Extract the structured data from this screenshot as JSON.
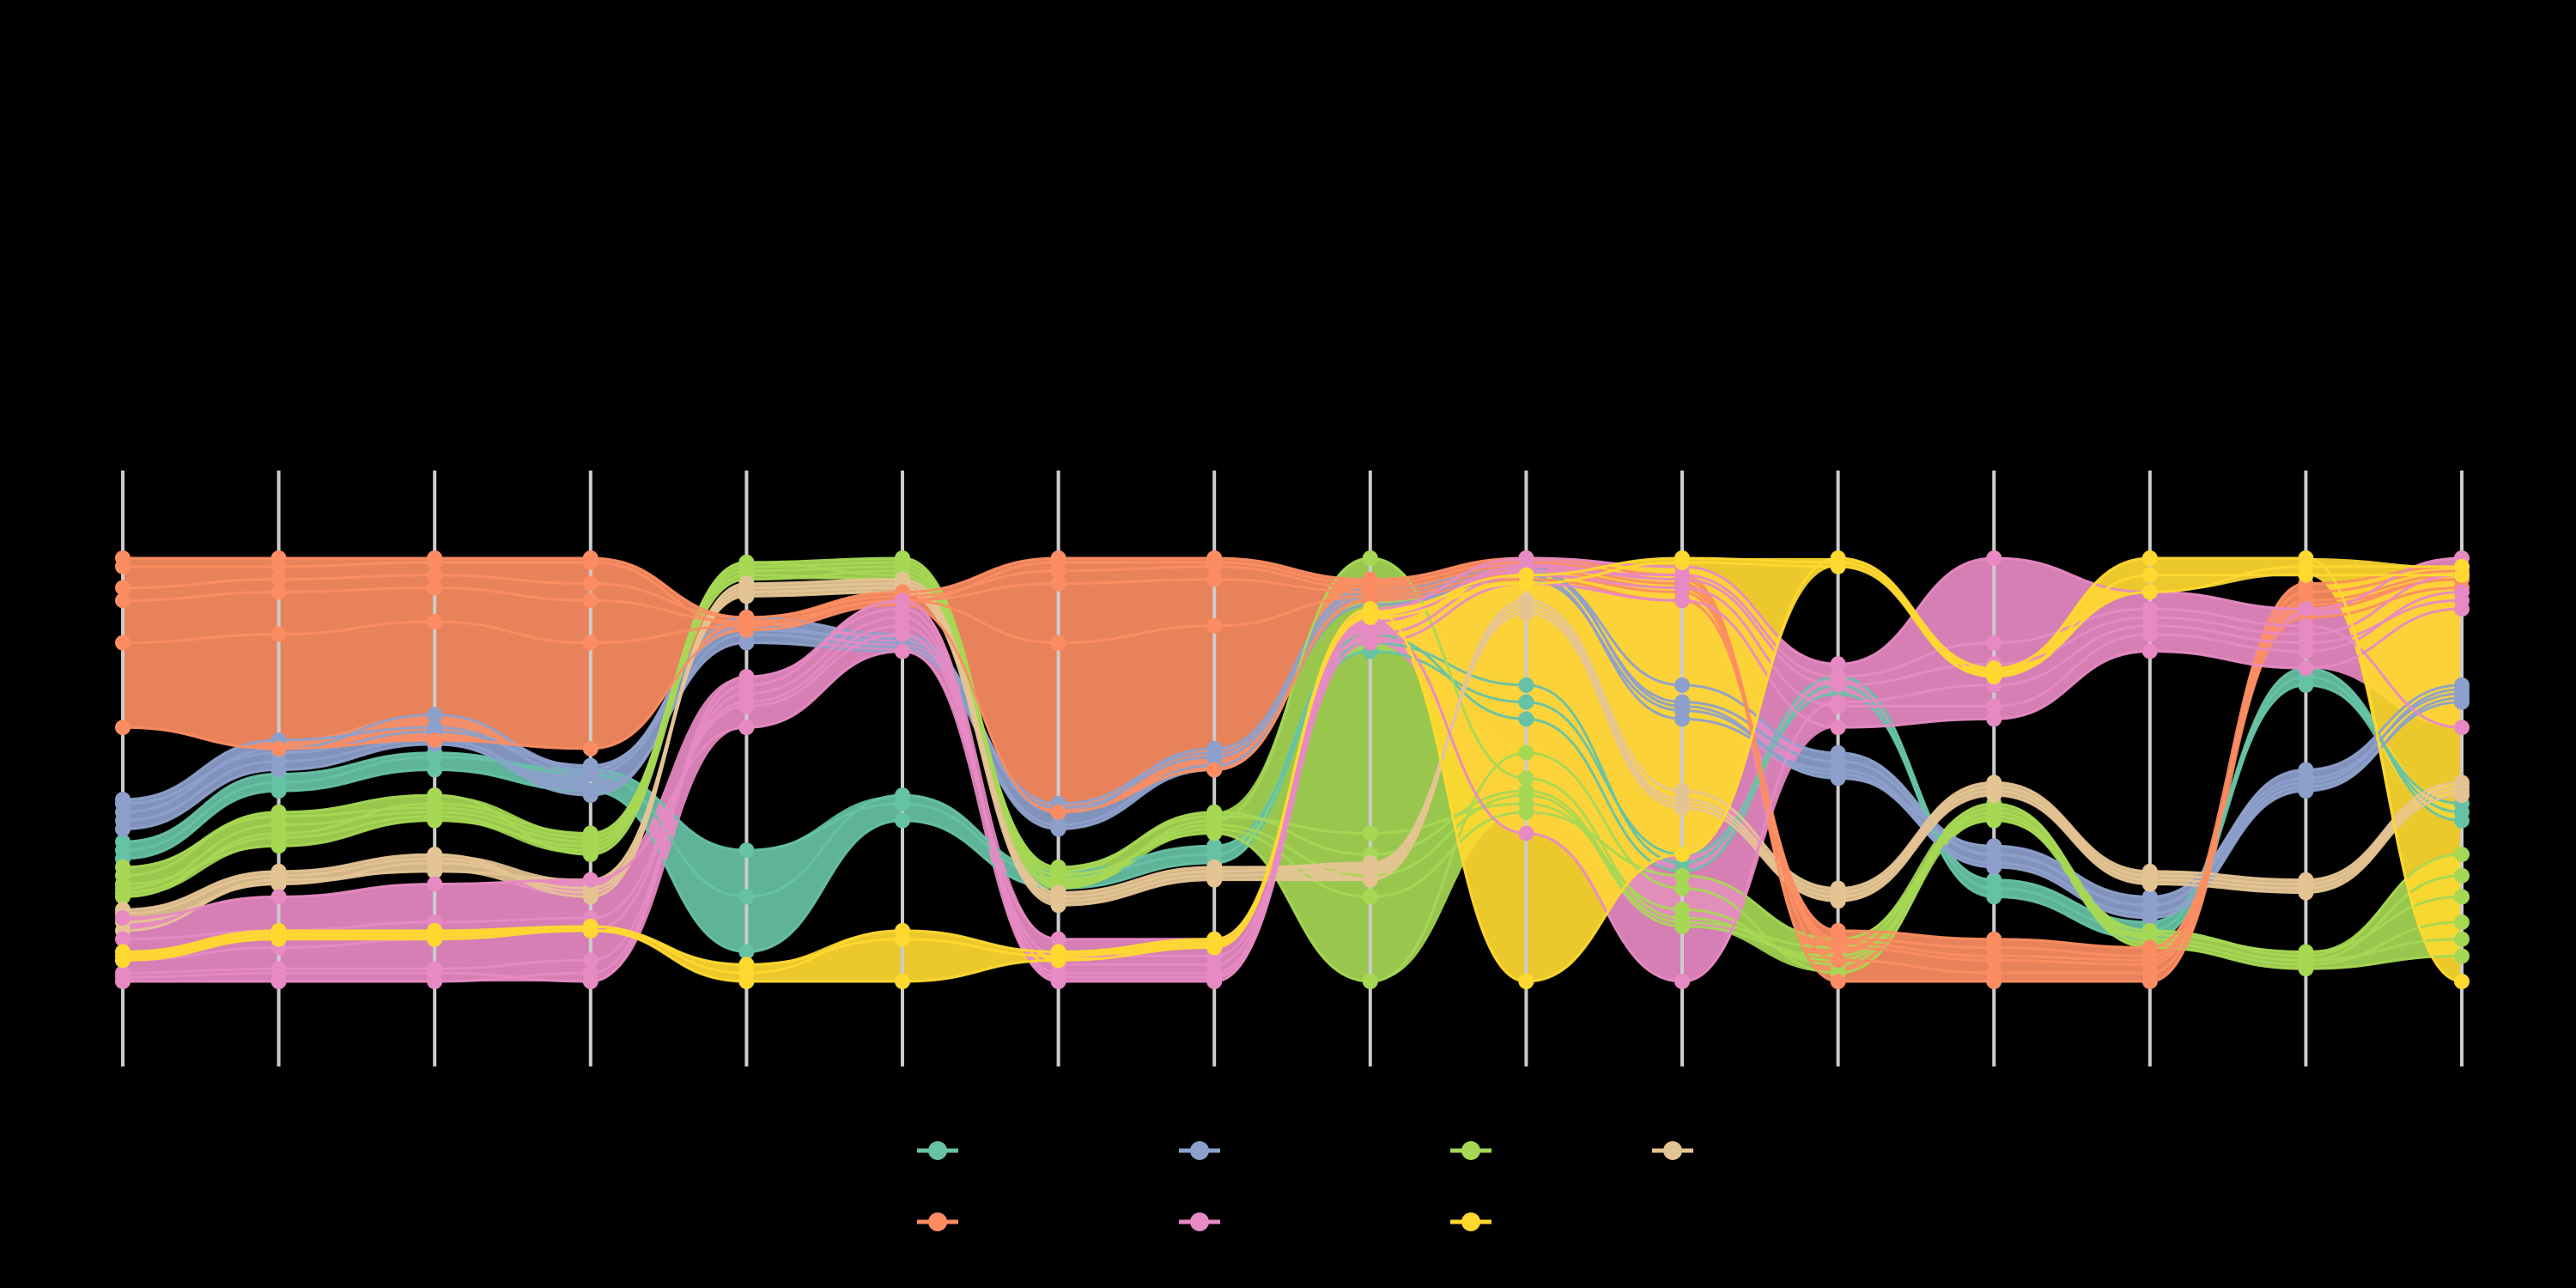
{
  "chart_data": {
    "type": "parallel-coordinates",
    "title": "",
    "axes": [
      "",
      "",
      "",
      "",
      "",
      "",
      "",
      "",
      "",
      "",
      "",
      "",
      "",
      "",
      "",
      ""
    ],
    "value_range": [
      0,
      1
    ],
    "grid": false,
    "legend_placement": "bottom-center",
    "background": "#000000",
    "axis_color": "#cccccc",
    "series": [
      {
        "color": "#66c2a5",
        "lines": [
          [
            0.29,
            0.45,
            0.5,
            0.45,
            0.07,
            0.38,
            0.22,
            0.28,
            0.8,
            0.7,
            0.28,
            0.72,
            0.22,
            0.12,
            0.72,
            0.4
          ],
          [
            0.33,
            0.49,
            0.54,
            0.49,
            0.2,
            0.44,
            0.26,
            0.32,
            0.78,
            0.66,
            0.3,
            0.68,
            0.24,
            0.14,
            0.7,
            0.42
          ],
          [
            0.31,
            0.47,
            0.53,
            0.5,
            0.31,
            0.42,
            0.25,
            0.3,
            0.82,
            0.62,
            0.26,
            0.7,
            0.2,
            0.1,
            0.74,
            0.38
          ]
        ]
      },
      {
        "color": "#8da0cb",
        "lines": [
          [
            0.4,
            0.55,
            0.63,
            0.5,
            0.86,
            0.82,
            0.4,
            0.55,
            0.92,
            0.98,
            0.65,
            0.48,
            0.32,
            0.2,
            0.48,
            0.68
          ],
          [
            0.43,
            0.57,
            0.6,
            0.49,
            0.84,
            0.8,
            0.42,
            0.54,
            0.93,
            0.97,
            0.7,
            0.54,
            0.3,
            0.18,
            0.5,
            0.7
          ],
          [
            0.38,
            0.52,
            0.57,
            0.45,
            0.8,
            0.78,
            0.36,
            0.5,
            0.9,
            0.96,
            0.62,
            0.5,
            0.28,
            0.16,
            0.46,
            0.66
          ],
          [
            0.42,
            0.54,
            0.59,
            0.51,
            0.83,
            0.81,
            0.41,
            0.53,
            0.91,
            0.97,
            0.66,
            0.52,
            0.3,
            0.18,
            0.47,
            0.69
          ],
          [
            0.36,
            0.5,
            0.56,
            0.44,
            0.82,
            0.79,
            0.37,
            0.51,
            0.89,
            0.95,
            0.64,
            0.49,
            0.27,
            0.15,
            0.45,
            0.67
          ]
        ]
      },
      {
        "color": "#a6d854",
        "lines": [
          [
            0.23,
            0.32,
            0.38,
            0.32,
            0.99,
            1.0,
            0.25,
            0.35,
            0.0,
            0.54,
            0.22,
            0.02,
            0.4,
            0.08,
            0.03,
            0.06
          ],
          [
            0.2,
            0.35,
            0.42,
            0.35,
            0.97,
            0.98,
            0.22,
            0.38,
            1.0,
            0.48,
            0.15,
            0.05,
            0.42,
            0.1,
            0.05,
            0.1
          ],
          [
            0.25,
            0.4,
            0.44,
            0.3,
            0.95,
            0.97,
            0.26,
            0.4,
            0.3,
            0.45,
            0.14,
            0.08,
            0.4,
            0.09,
            0.04,
            0.14
          ],
          [
            0.22,
            0.37,
            0.4,
            0.33,
            0.98,
            0.99,
            0.24,
            0.36,
            0.2,
            0.4,
            0.25,
            0.1,
            0.38,
            0.12,
            0.06,
            0.3
          ],
          [
            0.27,
            0.39,
            0.41,
            0.34,
            0.96,
            0.95,
            0.27,
            0.39,
            0.35,
            0.42,
            0.17,
            0.04,
            0.41,
            0.11,
            0.07,
            0.2
          ],
          [
            0.21,
            0.34,
            0.39,
            0.31,
            0.99,
            0.96,
            0.23,
            0.37,
            0.25,
            0.44,
            0.13,
            0.06,
            0.39,
            0.1,
            0.05,
            0.25
          ]
        ]
      },
      {
        "color": "#e5c494",
        "lines": [
          [
            0.17,
            0.26,
            0.3,
            0.2,
            0.93,
            0.94,
            0.2,
            0.26,
            0.28,
            0.88,
            0.42,
            0.2,
            0.45,
            0.24,
            0.22,
            0.45
          ],
          [
            0.12,
            0.24,
            0.26,
            0.24,
            0.91,
            0.92,
            0.18,
            0.24,
            0.24,
            0.9,
            0.45,
            0.22,
            0.47,
            0.26,
            0.24,
            0.47
          ],
          [
            0.14,
            0.23,
            0.28,
            0.22,
            0.92,
            0.93,
            0.19,
            0.25,
            0.26,
            0.89,
            0.43,
            0.21,
            0.46,
            0.25,
            0.23,
            0.46
          ],
          [
            0.16,
            0.25,
            0.29,
            0.21,
            0.94,
            0.95,
            0.21,
            0.27,
            0.27,
            0.87,
            0.41,
            0.19,
            0.44,
            0.23,
            0.21,
            0.44
          ]
        ]
      },
      {
        "color": "#fc8d62",
        "lines": [
          [
            1.0,
            1.0,
            1.0,
            1.0,
            0.86,
            0.92,
            1.0,
            1.0,
            0.95,
            1.0,
            0.96,
            0.0,
            0.0,
            0.0,
            0.94,
            0.98
          ],
          [
            0.98,
            0.98,
            0.99,
            0.99,
            0.84,
            0.9,
            0.99,
            0.99,
            0.94,
            0.99,
            0.95,
            0.05,
            0.02,
            0.02,
            0.92,
            0.97
          ],
          [
            0.93,
            0.95,
            0.96,
            0.94,
            0.86,
            0.91,
            0.97,
            0.98,
            0.93,
            0.98,
            0.94,
            0.08,
            0.05,
            0.04,
            0.9,
            0.96
          ],
          [
            0.9,
            0.92,
            0.93,
            0.9,
            0.85,
            0.9,
            0.94,
            0.95,
            0.92,
            0.97,
            0.93,
            0.1,
            0.08,
            0.06,
            0.88,
            0.95
          ],
          [
            0.6,
            0.55,
            0.57,
            0.55,
            0.83,
            0.89,
            0.4,
            0.5,
            0.9,
            0.95,
            0.9,
            0.12,
            0.1,
            0.08,
            0.86,
            0.93
          ],
          [
            0.8,
            0.82,
            0.85,
            0.8,
            0.84,
            0.9,
            0.8,
            0.84,
            0.91,
            0.96,
            0.92,
            0.09,
            0.06,
            0.05,
            0.89,
            0.95
          ]
        ]
      },
      {
        "color": "#e78ac3",
        "lines": [
          [
            0.0,
            0.0,
            0.0,
            0.02,
            0.7,
            0.9,
            0.0,
            0.0,
            0.88,
            1.0,
            0.98,
            0.75,
            1.0,
            0.92,
            0.88,
            1.0
          ],
          [
            0.02,
            0.03,
            0.03,
            0.05,
            0.68,
            0.86,
            0.02,
            0.02,
            0.85,
            0.98,
            0.95,
            0.7,
            0.75,
            0.86,
            0.82,
            0.96
          ],
          [
            0.1,
            0.12,
            0.14,
            0.15,
            0.65,
            0.82,
            0.06,
            0.06,
            0.82,
            0.96,
            0.93,
            0.65,
            0.65,
            0.82,
            0.78,
            0.92
          ],
          [
            0.15,
            0.2,
            0.23,
            0.24,
            0.6,
            0.78,
            0.1,
            0.1,
            0.8,
            0.94,
            0.9,
            0.6,
            0.62,
            0.78,
            0.74,
            0.88
          ],
          [
            0.05,
            0.08,
            0.1,
            0.12,
            0.66,
            0.84,
            0.04,
            0.04,
            0.84,
            0.35,
            0.0,
            0.66,
            0.7,
            0.84,
            0.8,
            0.9
          ],
          [
            0.01,
            0.02,
            0.02,
            0.0,
            0.72,
            0.88,
            0.01,
            0.01,
            0.86,
            0.97,
            0.96,
            0.72,
            0.8,
            0.88,
            0.84,
            0.6
          ]
        ]
      },
      {
        "color": "#ffd92f",
        "lines": [
          [
            0.05,
            0.1,
            0.1,
            0.12,
            0.0,
            0.0,
            0.05,
            0.08,
            0.88,
            0.0,
            0.3,
            1.0,
            0.74,
            1.0,
            1.0,
            0.0
          ],
          [
            0.07,
            0.12,
            0.12,
            0.13,
            0.02,
            0.12,
            0.07,
            0.1,
            0.86,
            0.94,
            0.99,
            0.98,
            0.72,
            0.96,
            0.96,
            0.96
          ],
          [
            0.06,
            0.11,
            0.11,
            0.12,
            0.04,
            0.1,
            0.06,
            0.09,
            0.87,
            0.96,
            1.0,
            0.99,
            0.73,
            0.92,
            0.98,
            0.98
          ]
        ]
      }
    ],
    "legend": [
      {
        "name": "",
        "color": "#66c2a5"
      },
      {
        "name": "",
        "color": "#8da0cb"
      },
      {
        "name": "",
        "color": "#a6d854"
      },
      {
        "name": "",
        "color": "#e5c494"
      },
      {
        "name": "",
        "color": "#fc8d62"
      },
      {
        "name": "",
        "color": "#e78ac3"
      },
      {
        "name": "",
        "color": "#ffd92f"
      }
    ]
  }
}
